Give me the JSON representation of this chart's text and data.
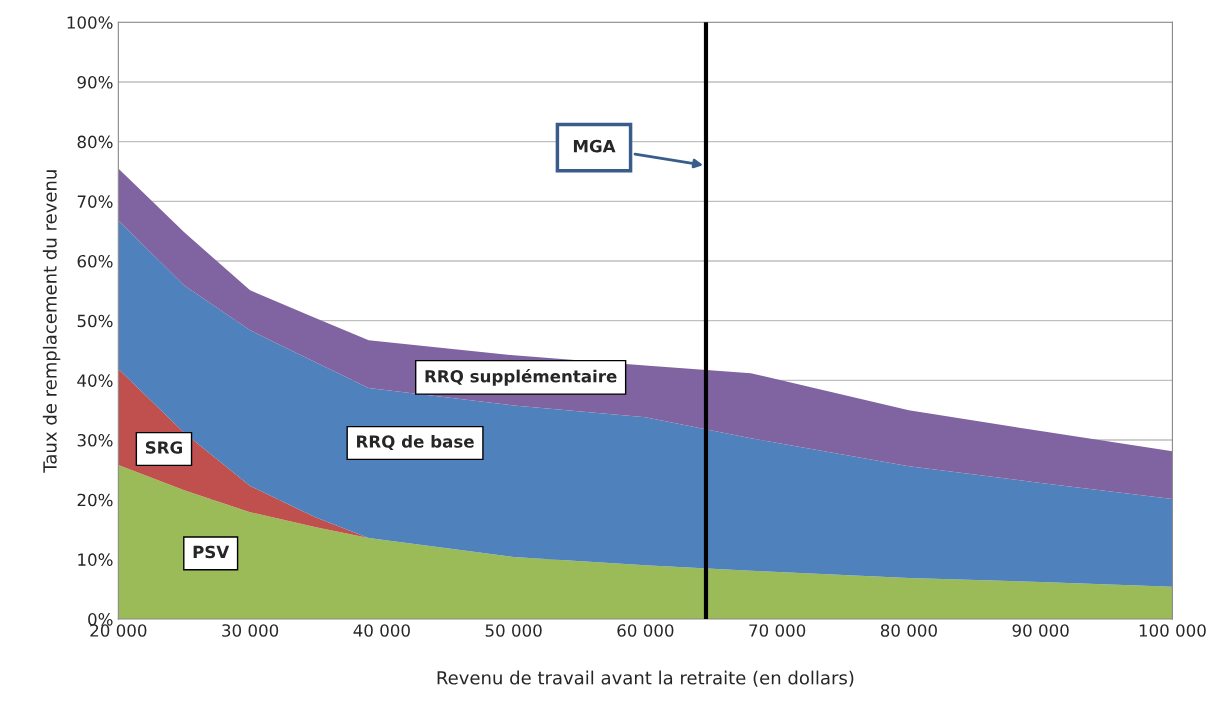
{
  "chart_data": {
    "type": "area",
    "stacked": true,
    "xlabel": "Revenu de travail avant la retraite (en dollars)",
    "ylabel": "Taux de remplacement du revenu",
    "x": [
      20000,
      25000,
      30000,
      35000,
      39000,
      50000,
      60000,
      68000,
      80000,
      90000,
      100000
    ],
    "series": [
      {
        "name": "PSV",
        "color": "#9bbb59",
        "values": [
          25.8,
          21.6,
          17.9,
          15.4,
          13.6,
          10.4,
          9.0,
          8.1,
          6.9,
          6.2,
          5.4
        ]
      },
      {
        "name": "SRG",
        "color": "#c0504d",
        "values": [
          16.1,
          9.6,
          4.4,
          1.6,
          0,
          0,
          0,
          0,
          0,
          0,
          0
        ]
      },
      {
        "name": "RRQ de base",
        "color": "#4f81bd",
        "values": [
          24.9,
          24.7,
          26.1,
          26.0,
          25.1,
          25.4,
          24.8,
          22.2,
          18.7,
          16.6,
          14.7
        ]
      },
      {
        "name": "RRQ supplémentaire",
        "color": "#8064a2",
        "values": [
          8.7,
          8.9,
          6.7,
          7.4,
          8.0,
          8.4,
          8.7,
          10.9,
          9.4,
          8.7,
          8.0
        ]
      }
    ],
    "xlim": [
      20000,
      100000
    ],
    "xticks": [
      {
        "value": 20000,
        "label": "20 000"
      },
      {
        "value": 30000,
        "label": "30 000"
      },
      {
        "value": 40000,
        "label": "40 000"
      },
      {
        "value": 50000,
        "label": "50 000"
      },
      {
        "value": 60000,
        "label": "60 000"
      },
      {
        "value": 70000,
        "label": "70 000"
      },
      {
        "value": 80000,
        "label": "80 000"
      },
      {
        "value": 90000,
        "label": "90 000"
      },
      {
        "value": 100000,
        "label": "100 000"
      }
    ],
    "ylim": [
      0,
      100
    ],
    "yticks": [
      {
        "value": 0,
        "label": "0%"
      },
      {
        "value": 10,
        "label": "10%"
      },
      {
        "value": 20,
        "label": "20%"
      },
      {
        "value": 30,
        "label": "30%"
      },
      {
        "value": 40,
        "label": "40%"
      },
      {
        "value": 50,
        "label": "50%"
      },
      {
        "value": 60,
        "label": "60%"
      },
      {
        "value": 70,
        "label": "70%"
      },
      {
        "value": 80,
        "label": "80%"
      },
      {
        "value": 90,
        "label": "90%"
      },
      {
        "value": 100,
        "label": "100%"
      }
    ],
    "grid": "y",
    "ref_lines": [
      {
        "axis": "x",
        "value": 64600,
        "label": "MGA",
        "color": "#000000"
      }
    ]
  }
}
